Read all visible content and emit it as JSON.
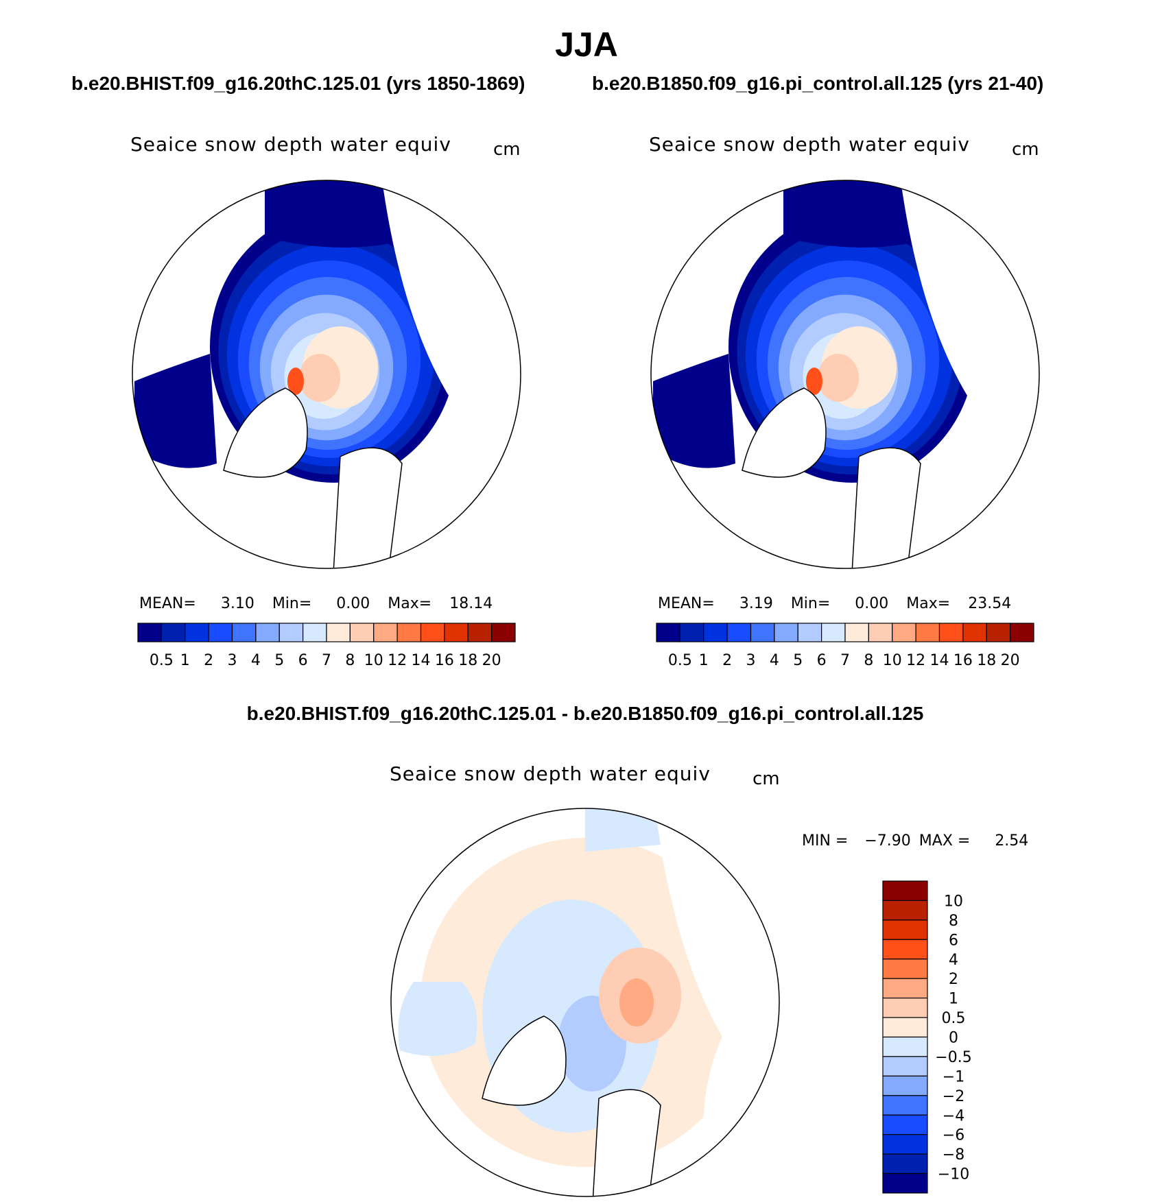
{
  "figure_title": "JJA",
  "header": {
    "left_case": "b.e20.BHIST.f09_g16.20thC.125.01 (yrs 1850-1869)",
    "right_case": "b.e20.B1850.f09_g16.pi_control.all.125 (yrs 21-40)",
    "diff_title": "b.e20.BHIST.f09_g16.20thC.125.01 - b.e20.B1850.f09_g16.pi_control.all.125"
  },
  "chart_data": [
    {
      "type": "heatmap",
      "projection": "north-polar-stereographic",
      "title": "Seaice snow depth water equiv",
      "units": "cm",
      "stats": {
        "mean_label": "MEAN=",
        "mean": "3.10",
        "min_label": "Min=",
        "min": "0.00",
        "max_label": "Max=",
        "max": "18.14"
      },
      "colorbar": {
        "orientation": "horizontal",
        "ticks": [
          "0.5",
          "1",
          "2",
          "3",
          "4",
          "5",
          "6",
          "7",
          "8",
          "10",
          "12",
          "14",
          "16",
          "18",
          "20"
        ]
      }
    },
    {
      "type": "heatmap",
      "projection": "north-polar-stereographic",
      "title": "Seaice snow depth water equiv",
      "units": "cm",
      "stats": {
        "mean_label": "MEAN=",
        "mean": "3.19",
        "min_label": "Min=",
        "min": "0.00",
        "max_label": "Max=",
        "max": "23.54"
      },
      "colorbar": {
        "orientation": "horizontal",
        "ticks": [
          "0.5",
          "1",
          "2",
          "3",
          "4",
          "5",
          "6",
          "7",
          "8",
          "10",
          "12",
          "14",
          "16",
          "18",
          "20"
        ]
      }
    },
    {
      "type": "heatmap",
      "projection": "north-polar-stereographic",
      "title": "Seaice snow depth water equiv",
      "units": "cm",
      "stats": {
        "min_label": "MIN =",
        "min": "−7.90",
        "max_label": "MAX =",
        "max": "2.54"
      },
      "colorbar": {
        "orientation": "vertical",
        "ticks": [
          "10",
          "8",
          "6",
          "4",
          "2",
          "1",
          "0.5",
          "0",
          "−0.5",
          "−1",
          "−2",
          "−4",
          "−6",
          "−8",
          "−10"
        ]
      }
    }
  ],
  "colors": [
    "#00008a",
    "#0020b0",
    "#0032e0",
    "#1a4cff",
    "#4074ff",
    "#84aaff",
    "#b3ccff",
    "#d6e9ff",
    "#ffebd9",
    "#ffcdb3",
    "#ffaa82",
    "#ff7a45",
    "#ff501a",
    "#e03300",
    "#b82200",
    "#8b0000"
  ]
}
